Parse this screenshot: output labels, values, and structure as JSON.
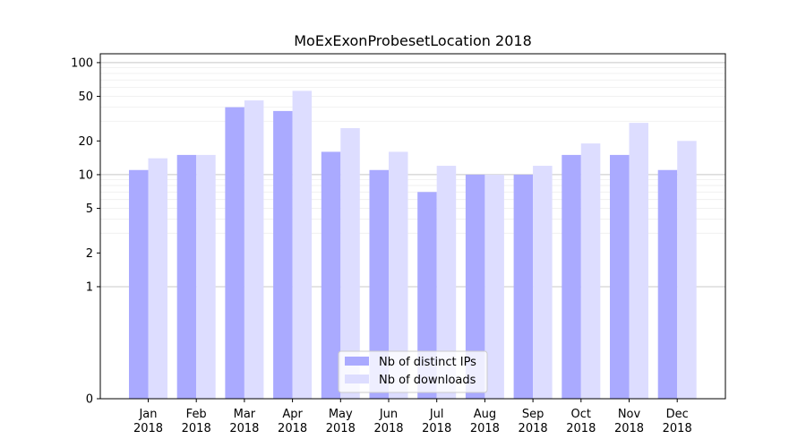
{
  "chart_data": {
    "type": "bar",
    "title": "MoExExonProbesetLocation 2018",
    "xlabel": "",
    "ylabel": "",
    "yscale": "symlog",
    "ylim": [
      0,
      120
    ],
    "yticks": [
      0,
      1,
      2,
      5,
      10,
      20,
      50,
      100
    ],
    "ytick_labels": [
      "0",
      "1",
      "2",
      "5",
      "10",
      "20",
      "50",
      "100"
    ],
    "categories": [
      [
        "Jan",
        "2018"
      ],
      [
        "Feb",
        "2018"
      ],
      [
        "Mar",
        "2018"
      ],
      [
        "Apr",
        "2018"
      ],
      [
        "May",
        "2018"
      ],
      [
        "Jun",
        "2018"
      ],
      [
        "Jul",
        "2018"
      ],
      [
        "Aug",
        "2018"
      ],
      [
        "Sep",
        "2018"
      ],
      [
        "Oct",
        "2018"
      ],
      [
        "Nov",
        "2018"
      ],
      [
        "Dec",
        "2018"
      ]
    ],
    "series": [
      {
        "name": "Nb of distinct IPs",
        "color": "#aaaaff",
        "values": [
          11,
          15,
          40,
          37,
          16,
          11,
          7,
          10,
          10,
          15,
          15,
          11
        ]
      },
      {
        "name": "Nb of downloads",
        "color": "#ddddff",
        "values": [
          14,
          15,
          46,
          56,
          26,
          16,
          12,
          10,
          12,
          19,
          29,
          20
        ]
      }
    ],
    "legend_position": "lower-center",
    "grid": true
  }
}
